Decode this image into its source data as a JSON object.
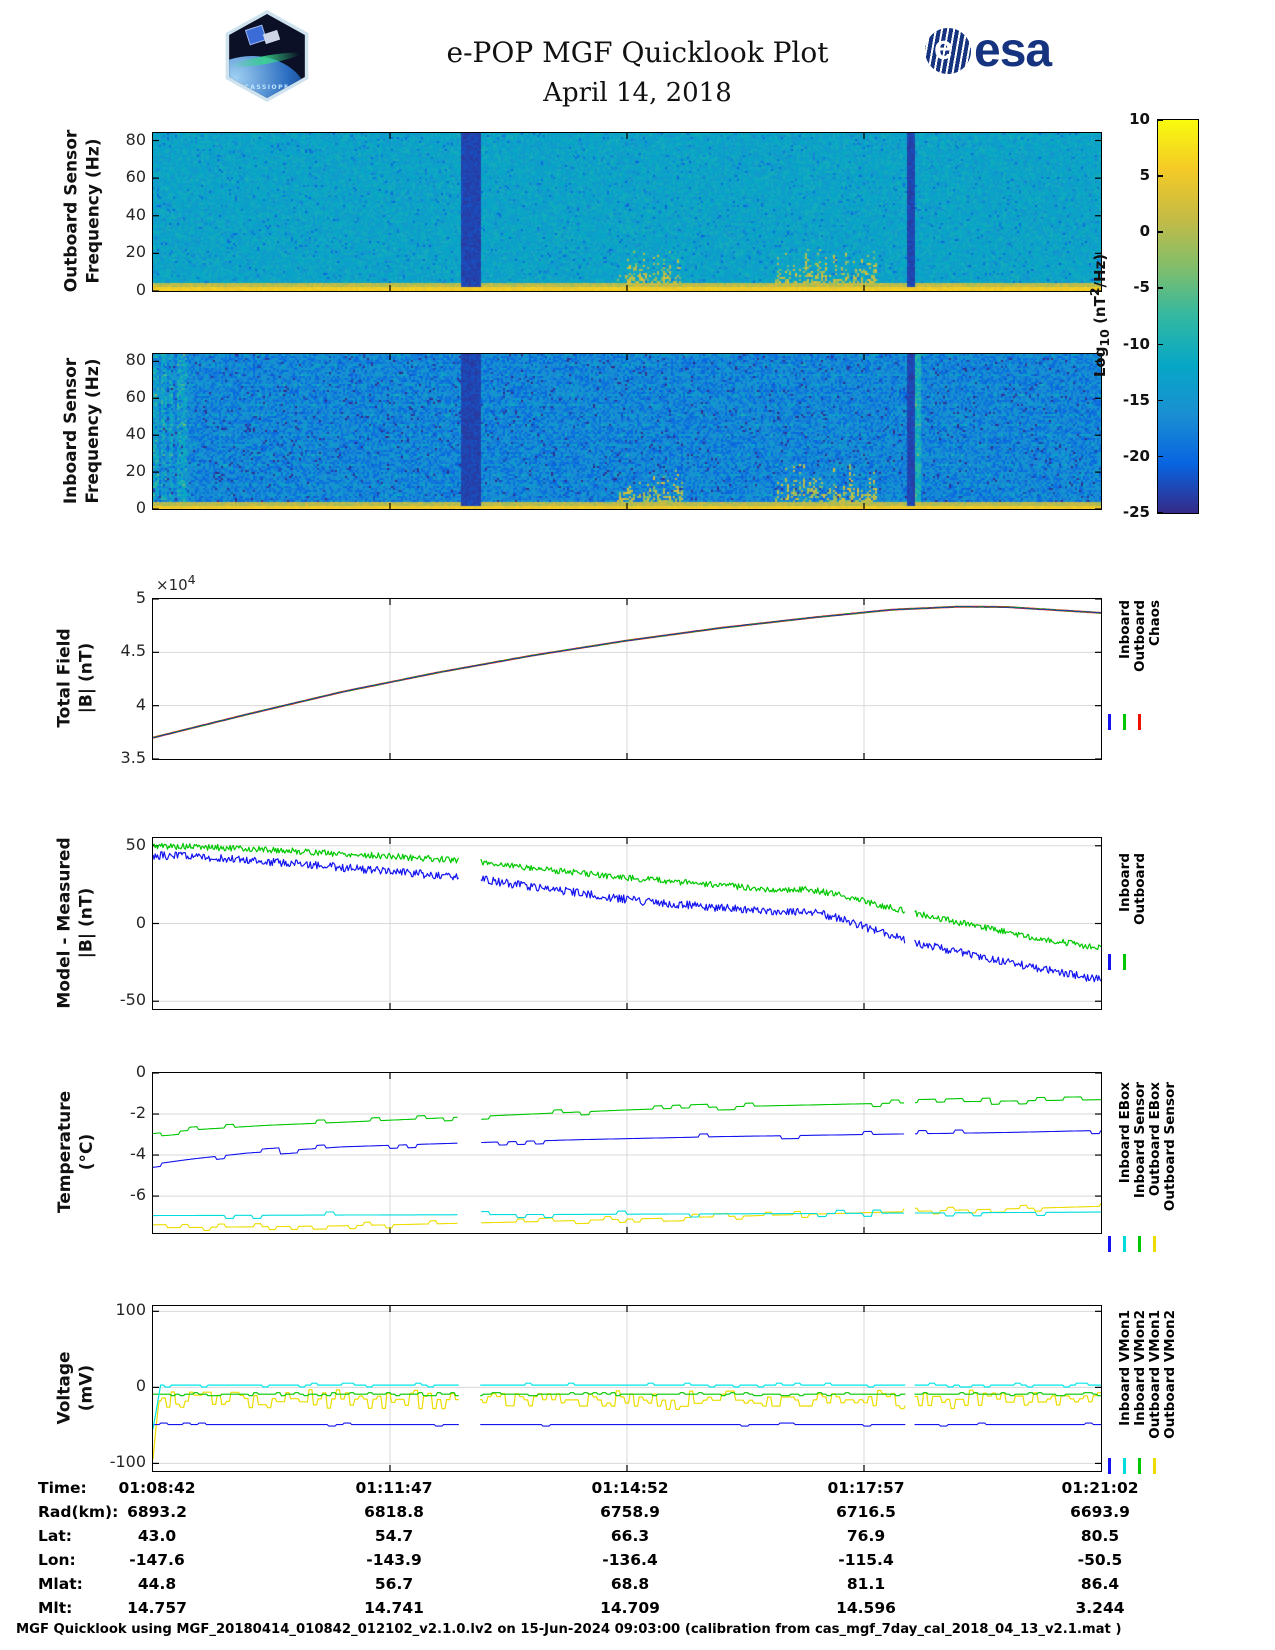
{
  "header": {
    "title": "e-POP MGF Quicklook Plot",
    "date": "April 14, 2018",
    "patch_text": "CASSIOPE",
    "esa_text": "esa"
  },
  "colorbar": {
    "label_parts": {
      "p1": "Log",
      "sub": "10",
      "p2": " (nT",
      "sup": "2",
      "p3": "/Hz)"
    },
    "ticks": [
      10,
      5,
      0,
      -5,
      -10,
      -15,
      -20,
      -25
    ],
    "range": [
      -25,
      10
    ],
    "palette": [
      "#352a87",
      "#0864e1",
      "#1a8fd2",
      "#06a7c6",
      "#32b8a2",
      "#81be6b",
      "#c5bb45",
      "#f4ca26",
      "#f9fb0e"
    ]
  },
  "chart_data": [
    {
      "id": "outboard-spectrogram",
      "type": "heatmap",
      "ylabel_lines": [
        "Outboard Sensor",
        "Frequency (Hz)"
      ],
      "yticks": [
        80,
        60,
        40,
        20,
        0
      ],
      "ylim": [
        0,
        84
      ],
      "seed": 11,
      "base": -12.5,
      "noise": 2.4,
      "speckle": 0.05,
      "gap_v": -24,
      "gaps": [
        [
          0.323,
          0.345
        ],
        [
          0.794,
          0.802
        ]
      ],
      "plumes": [
        [
          0.488,
          0.557,
          0.3
        ],
        [
          0.655,
          0.763,
          0.34
        ]
      ],
      "bottom_band": [
        {
          "h": 4,
          "v": 5.5,
          "noise": 1.2
        },
        {
          "h": 5,
          "v": 0.8,
          "noise": 1.8
        }
      ]
    },
    {
      "id": "inboard-spectrogram",
      "type": "heatmap",
      "ylabel_lines": [
        "Inboard Sensor",
        "Frequency (Hz)"
      ],
      "yticks": [
        80,
        60,
        40,
        20,
        0
      ],
      "ylim": [
        0,
        84
      ],
      "seed": 23,
      "base": -17.2,
      "noise": 3.4,
      "speckle": 0.06,
      "gap_v": -24,
      "gaps": [
        [
          0.323,
          0.345
        ],
        [
          0.794,
          0.802
        ]
      ],
      "plumes": [
        [
          0.488,
          0.557,
          0.3
        ],
        [
          0.655,
          0.763,
          0.34
        ]
      ],
      "bottom_band": [
        {
          "h": 4,
          "v": 5.2,
          "noise": 1.2
        },
        {
          "h": 4,
          "v": 0.5,
          "noise": 1.8
        }
      ],
      "stripes": {
        "period": 10,
        "prob": 0.55,
        "dv": 5
      },
      "edge_streaks": [
        0,
        0.035,
        8
      ],
      "bright_cols": [
        [
          0.802,
          0.809,
          7
        ]
      ]
    },
    {
      "id": "total-field",
      "type": "line",
      "ylabel_lines": [
        "Total Field",
        "|B| (nT)"
      ],
      "yticks": [
        5,
        4.5,
        4,
        3.5
      ],
      "ylim": [
        3.5,
        5
      ],
      "multiplier_parts": {
        "base": "×10",
        "exp": "4"
      },
      "gaps": [],
      "legend": [
        {
          "label": "Inboard",
          "color": "#1414f0"
        },
        {
          "label": "Outboard",
          "color": "#00c800"
        },
        {
          "label": "Chaos",
          "color": "#ee1100"
        }
      ],
      "series": [
        {
          "name": "Chaos",
          "color": "#d53018",
          "width": 2,
          "noise": 0,
          "noise_mode": "dense",
          "seed": 1,
          "samples": 400,
          "points": [
            [
              0,
              3.7
            ],
            [
              0.1,
              3.92
            ],
            [
              0.2,
              4.13
            ],
            [
              0.3,
              4.31
            ],
            [
              0.4,
              4.47
            ],
            [
              0.5,
              4.61
            ],
            [
              0.6,
              4.73
            ],
            [
              0.7,
              4.83
            ],
            [
              0.78,
              4.9
            ],
            [
              0.85,
              4.928
            ],
            [
              0.9,
              4.925
            ],
            [
              1,
              4.87
            ]
          ]
        },
        {
          "name": "Outboard",
          "color": "#00b400",
          "width": 1.1,
          "noise": 0.004,
          "noise_mode": "dense",
          "seed": 2,
          "samples": 400,
          "points": [
            [
              0,
              3.7
            ],
            [
              0.1,
              3.92
            ],
            [
              0.2,
              4.13
            ],
            [
              0.3,
              4.31
            ],
            [
              0.4,
              4.47
            ],
            [
              0.5,
              4.61
            ],
            [
              0.6,
              4.73
            ],
            [
              0.7,
              4.83
            ],
            [
              0.78,
              4.9
            ],
            [
              0.85,
              4.928
            ],
            [
              0.9,
              4.925
            ],
            [
              1,
              4.87
            ]
          ]
        },
        {
          "name": "Inboard",
          "color": "#1414f0",
          "width": 0.6,
          "noise": 0.003,
          "noise_mode": "dense",
          "seed": 3,
          "samples": 400,
          "points": [
            [
              0,
              3.7
            ],
            [
              0.1,
              3.92
            ],
            [
              0.2,
              4.13
            ],
            [
              0.3,
              4.31
            ],
            [
              0.4,
              4.47
            ],
            [
              0.5,
              4.61
            ],
            [
              0.6,
              4.73
            ],
            [
              0.7,
              4.83
            ],
            [
              0.78,
              4.9
            ],
            [
              0.85,
              4.928
            ],
            [
              0.9,
              4.925
            ],
            [
              1,
              4.87
            ]
          ]
        }
      ]
    },
    {
      "id": "model-measured",
      "type": "line",
      "ylabel_lines": [
        "Model - Measured",
        "|B| (nT)"
      ],
      "yticks": [
        50,
        0,
        -50
      ],
      "ylim": [
        -55,
        55
      ],
      "gaps": [
        [
          0.323,
          0.345
        ],
        [
          0.794,
          0.803
        ]
      ],
      "legend": [
        {
          "label": "Inboard",
          "color": "#1414f0"
        },
        {
          "label": "Outboard",
          "color": "#00c800"
        }
      ],
      "series": [
        {
          "name": "Outboard",
          "color": "#00c800",
          "width": 1.2,
          "noise": 2,
          "noise_mode": "dense",
          "seed": 5,
          "samples": 850,
          "points": [
            [
              0,
              50
            ],
            [
              0.06,
              49
            ],
            [
              0.12,
              47.5
            ],
            [
              0.18,
              45.5
            ],
            [
              0.24,
              43.5
            ],
            [
              0.3,
              41.5
            ],
            [
              0.34,
              40
            ],
            [
              0.36,
              38.5
            ],
            [
              0.42,
              34.5
            ],
            [
              0.48,
              30.5
            ],
            [
              0.52,
              28.5
            ],
            [
              0.56,
              26.5
            ],
            [
              0.6,
              24.5
            ],
            [
              0.64,
              22.5
            ],
            [
              0.66,
              21.5
            ],
            [
              0.69,
              22
            ],
            [
              0.72,
              19
            ],
            [
              0.76,
              13
            ],
            [
              0.8,
              7
            ],
            [
              0.84,
              2
            ],
            [
              0.88,
              -3
            ],
            [
              0.92,
              -8
            ],
            [
              0.96,
              -12
            ],
            [
              1,
              -16
            ]
          ]
        },
        {
          "name": "Inboard",
          "color": "#1414f0",
          "width": 1.2,
          "noise": 2.6,
          "noise_mode": "dense",
          "seed": 6,
          "samples": 850,
          "points": [
            [
              0,
              44
            ],
            [
              0.06,
              42.5
            ],
            [
              0.12,
              40
            ],
            [
              0.18,
              37
            ],
            [
              0.24,
              34
            ],
            [
              0.3,
              31
            ],
            [
              0.34,
              29
            ],
            [
              0.36,
              27
            ],
            [
              0.42,
              22
            ],
            [
              0.48,
              17
            ],
            [
              0.52,
              14
            ],
            [
              0.56,
              12
            ],
            [
              0.6,
              10
            ],
            [
              0.64,
              8
            ],
            [
              0.66,
              7
            ],
            [
              0.69,
              8
            ],
            [
              0.72,
              4
            ],
            [
              0.76,
              -4
            ],
            [
              0.8,
              -12
            ],
            [
              0.84,
              -17
            ],
            [
              0.88,
              -22
            ],
            [
              0.92,
              -27
            ],
            [
              0.96,
              -32
            ],
            [
              1,
              -36
            ]
          ]
        }
      ]
    },
    {
      "id": "temperature",
      "type": "line",
      "ylabel_lines": [
        "Temperature",
        "(°C)"
      ],
      "yticks": [
        0,
        -2,
        -4,
        -6
      ],
      "ylim": [
        -7.8,
        0
      ],
      "gaps": [
        [
          0.323,
          0.345
        ],
        [
          0.794,
          0.803
        ]
      ],
      "legend": [
        {
          "label": "Inboard EBox",
          "color": "#1414f0"
        },
        {
          "label": "Inboard Sensor",
          "color": "#00dcdc"
        },
        {
          "label": "Outboard EBox",
          "color": "#00c800"
        },
        {
          "label": "Outboard Sensor",
          "color": "#ecdc00"
        }
      ],
      "series": [
        {
          "name": "Outboard Sensor",
          "color": "#ecdc00",
          "width": 1.1,
          "noise": 0.2,
          "noise_mode": "steps",
          "quant": 0.15,
          "hold": 4,
          "prob": 0.6,
          "seed": 9,
          "samples": 520,
          "points": [
            [
              0,
              -7.55
            ],
            [
              0.2,
              -7.45
            ],
            [
              0.4,
              -7.25
            ],
            [
              0.6,
              -7.0
            ],
            [
              0.8,
              -6.75
            ],
            [
              1,
              -6.5
            ]
          ]
        },
        {
          "name": "Inboard Sensor",
          "color": "#00dcdc",
          "width": 1.1,
          "noise": 0.15,
          "noise_mode": "steps",
          "quant": 0.15,
          "hold": 5,
          "prob": 0.4,
          "seed": 8,
          "samples": 520,
          "points": [
            [
              0,
              -6.95
            ],
            [
              0.4,
              -6.9
            ],
            [
              0.7,
              -6.85
            ],
            [
              1,
              -6.78
            ]
          ]
        },
        {
          "name": "Inboard EBox",
          "color": "#1414f0",
          "width": 1.1,
          "noise": 0.18,
          "noise_mode": "steps",
          "quant": 0.15,
          "hold": 5,
          "prob": 0.45,
          "seed": 7,
          "samples": 520,
          "points": [
            [
              0,
              -4.45
            ],
            [
              0.04,
              -4.2
            ],
            [
              0.1,
              -3.9
            ],
            [
              0.2,
              -3.6
            ],
            [
              0.3,
              -3.45
            ],
            [
              0.45,
              -3.25
            ],
            [
              0.6,
              -3.1
            ],
            [
              0.75,
              -3.0
            ],
            [
              0.9,
              -2.9
            ],
            [
              1,
              -2.8
            ]
          ]
        },
        {
          "name": "Outboard EBox",
          "color": "#00c800",
          "width": 1.1,
          "noise": 0.2,
          "noise_mode": "steps",
          "quant": 0.15,
          "hold": 5,
          "prob": 0.5,
          "seed": 4,
          "samples": 520,
          "points": [
            [
              0,
              -2.95
            ],
            [
              0.05,
              -2.75
            ],
            [
              0.12,
              -2.55
            ],
            [
              0.2,
              -2.4
            ],
            [
              0.3,
              -2.2
            ],
            [
              0.4,
              -2.0
            ],
            [
              0.5,
              -1.8
            ],
            [
              0.6,
              -1.65
            ],
            [
              0.7,
              -1.55
            ],
            [
              0.85,
              -1.4
            ],
            [
              1,
              -1.3
            ]
          ]
        }
      ]
    },
    {
      "id": "voltage",
      "type": "line",
      "ylabel_lines": [
        "Voltage",
        "(mV)"
      ],
      "yticks": [
        100,
        0,
        -100
      ],
      "ylim": [
        -110,
        107
      ],
      "gaps": [
        [
          0.323,
          0.345
        ],
        [
          0.794,
          0.803
        ]
      ],
      "legend": [
        {
          "label": "Inboard VMon1",
          "color": "#1414f0"
        },
        {
          "label": "Inboard VMon2",
          "color": "#00dcdc"
        },
        {
          "label": "Outboard VMon1",
          "color": "#00c800"
        },
        {
          "label": "Outboard VMon2",
          "color": "#ecdc00"
        }
      ],
      "series": [
        {
          "name": "Outboard VMon2",
          "color": "#ecdc00",
          "width": 1.2,
          "noise": 11,
          "noise_mode": "steps",
          "quant": 4,
          "hold": 3,
          "prob": 0.95,
          "seed": 14,
          "samples": 620,
          "points": [
            [
              0,
              -95
            ],
            [
              0.006,
              -14
            ],
            [
              0.3,
              -16
            ],
            [
              0.6,
              -17
            ],
            [
              1,
              -15
            ]
          ]
        },
        {
          "name": "Outboard VMon1",
          "color": "#00c800",
          "width": 1.1,
          "noise": 2.2,
          "noise_mode": "steps",
          "quant": 2,
          "hold": 3,
          "prob": 0.55,
          "seed": 15,
          "samples": 620,
          "points": [
            [
              0,
              -9
            ],
            [
              1,
              -9
            ]
          ]
        },
        {
          "name": "Inboard VMon1",
          "color": "#1414f0",
          "width": 1.1,
          "noise": 2,
          "noise_mode": "steps",
          "quant": 2,
          "hold": 5,
          "prob": 0.3,
          "seed": 16,
          "samples": 620,
          "points": [
            [
              0,
              -49
            ],
            [
              1,
              -49
            ]
          ]
        },
        {
          "name": "Inboard VMon2",
          "color": "#00e6e6",
          "width": 1.2,
          "noise": 2.6,
          "noise_mode": "steps",
          "quant": 2.5,
          "hold": 4,
          "prob": 0.3,
          "seed": 17,
          "samples": 620,
          "points": [
            [
              0,
              -55
            ],
            [
              0.008,
              3
            ],
            [
              1,
              3
            ]
          ]
        }
      ]
    }
  ],
  "footer_table": {
    "rows": [
      {
        "label": "Time:",
        "values": [
          "01:08:42",
          "01:11:47",
          "01:14:52",
          "01:17:57",
          "01:21:02"
        ]
      },
      {
        "label": "Rad(km):",
        "values": [
          "6893.2",
          "6818.8",
          "6758.9",
          "6716.5",
          "6693.9"
        ]
      },
      {
        "label": "Lat:",
        "values": [
          "43.0",
          "54.7",
          "66.3",
          "76.9",
          "80.5"
        ]
      },
      {
        "label": "Lon:",
        "values": [
          "-147.6",
          "-143.9",
          "-136.4",
          "-115.4",
          "-50.5"
        ]
      },
      {
        "label": "Mlat:",
        "values": [
          "44.8",
          "56.7",
          "68.8",
          "81.1",
          "86.4"
        ]
      },
      {
        "label": "Mlt:",
        "values": [
          "14.757",
          "14.741",
          "14.709",
          "14.596",
          "3.244"
        ]
      }
    ]
  },
  "footnote": "MGF Quicklook using MGF_20180414_010842_012102_v2.1.0.lv2 on 15-Jun-2024 09:03:00 (calibration from cas_mgf_7day_cal_2018_04_13_v2.1.mat )"
}
